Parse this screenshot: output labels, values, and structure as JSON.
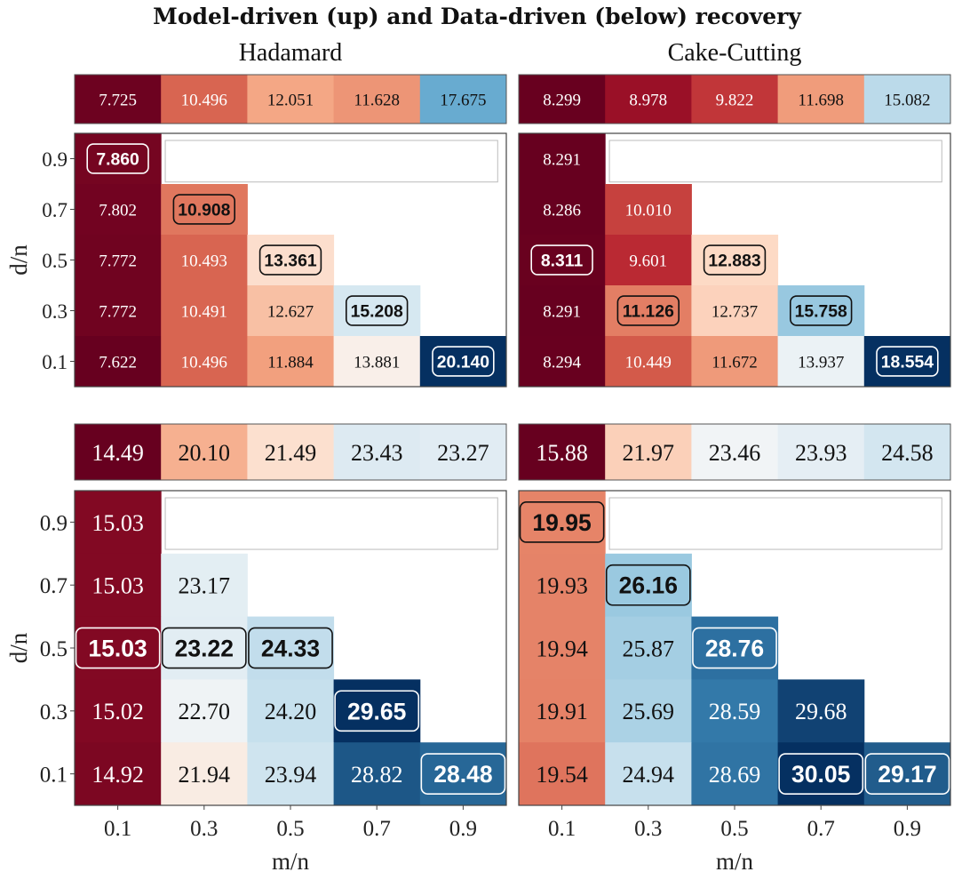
{
  "title": "Model-driven (up) and Data-driven (below) recovery",
  "chart_data": [
    {
      "type": "heatmap",
      "title": "Hadamard",
      "section": "top",
      "xlabel": "",
      "ylabel": "d/n",
      "x_ticks": [
        "0.1",
        "0.3",
        "0.5",
        "0.7",
        "0.9"
      ],
      "y_ticks": [
        "0.9",
        "0.7",
        "0.5",
        "0.3",
        "0.1"
      ],
      "summary_row": [
        "7.725",
        "10.496",
        "12.051",
        "11.628",
        "17.675"
      ],
      "rows": [
        [
          "7.860",
          null,
          null,
          null,
          null
        ],
        [
          "7.802",
          "10.908",
          null,
          null,
          null
        ],
        [
          "7.772",
          "10.493",
          "13.361",
          null,
          null
        ],
        [
          "7.772",
          "10.491",
          "12.627",
          "15.208",
          null
        ],
        [
          "7.622",
          "10.496",
          "11.884",
          "13.881",
          "20.140"
        ]
      ],
      "highlighted": [
        [
          0,
          0
        ],
        [
          1,
          1
        ],
        [
          2,
          2
        ],
        [
          3,
          3
        ],
        [
          4,
          4
        ]
      ]
    },
    {
      "type": "heatmap",
      "title": "Cake-Cutting",
      "section": "top",
      "xlabel": "",
      "ylabel": "",
      "x_ticks": [
        "0.1",
        "0.3",
        "0.5",
        "0.7",
        "0.9"
      ],
      "y_ticks": [
        "0.9",
        "0.7",
        "0.5",
        "0.3",
        "0.1"
      ],
      "summary_row": [
        "8.299",
        "8.978",
        "9.822",
        "11.698",
        "15.082"
      ],
      "rows": [
        [
          "8.291",
          null,
          null,
          null,
          null
        ],
        [
          "8.286",
          "10.010",
          null,
          null,
          null
        ],
        [
          "8.311",
          "9.601",
          "12.883",
          null,
          null
        ],
        [
          "8.291",
          "11.126",
          "12.737",
          "15.758",
          null
        ],
        [
          "8.294",
          "10.449",
          "11.672",
          "13.937",
          "18.554"
        ]
      ],
      "highlighted": [
        [
          2,
          0
        ],
        [
          3,
          1
        ],
        [
          2,
          2
        ],
        [
          3,
          3
        ],
        [
          4,
          4
        ]
      ]
    },
    {
      "type": "heatmap",
      "title": "",
      "section": "bottom",
      "xlabel": "m/n",
      "ylabel": "d/n",
      "x_ticks": [
        "0.1",
        "0.3",
        "0.5",
        "0.7",
        "0.9"
      ],
      "y_ticks": [
        "0.9",
        "0.7",
        "0.5",
        "0.3",
        "0.1"
      ],
      "summary_row": [
        "14.49",
        "20.10",
        "21.49",
        "23.43",
        "23.27"
      ],
      "rows": [
        [
          "15.03",
          null,
          null,
          null,
          null
        ],
        [
          "15.03",
          "23.17",
          null,
          null,
          null
        ],
        [
          "15.03",
          "23.22",
          "24.33",
          null,
          null
        ],
        [
          "15.02",
          "22.70",
          "24.20",
          "29.65",
          null
        ],
        [
          "14.92",
          "21.94",
          "23.94",
          "28.82",
          "28.48"
        ]
      ],
      "highlighted": [
        [
          2,
          0
        ],
        [
          2,
          1
        ],
        [
          2,
          2
        ],
        [
          3,
          3
        ],
        [
          4,
          4
        ]
      ]
    },
    {
      "type": "heatmap",
      "title": "",
      "section": "bottom",
      "xlabel": "m/n",
      "ylabel": "",
      "x_ticks": [
        "0.1",
        "0.3",
        "0.5",
        "0.7",
        "0.9"
      ],
      "y_ticks": [
        "0.9",
        "0.7",
        "0.5",
        "0.3",
        "0.1"
      ],
      "summary_row": [
        "15.88",
        "21.97",
        "23.46",
        "23.93",
        "24.58"
      ],
      "rows": [
        [
          "19.95",
          null,
          null,
          null,
          null
        ],
        [
          "19.93",
          "26.16",
          null,
          null,
          null
        ],
        [
          "19.94",
          "25.87",
          "28.76",
          null,
          null
        ],
        [
          "19.91",
          "25.69",
          "28.59",
          "29.68",
          null
        ],
        [
          "19.54",
          "24.94",
          "28.69",
          "30.05",
          "29.17"
        ]
      ],
      "highlighted": [
        [
          0,
          0
        ],
        [
          1,
          1
        ],
        [
          2,
          2
        ],
        [
          4,
          3
        ],
        [
          4,
          4
        ]
      ]
    }
  ]
}
